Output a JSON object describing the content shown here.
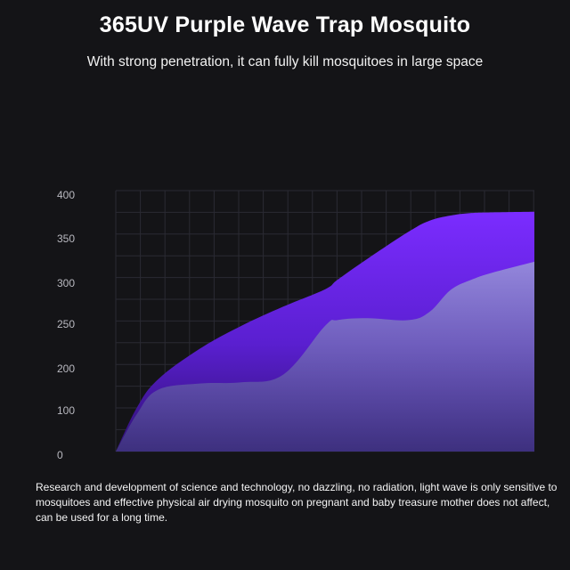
{
  "header": {
    "title": "365UV Purple Wave Trap Mosquito",
    "subtitle": "With strong penetration, it can fully kill mosquitoes in large space"
  },
  "caption": "Research and development of science and technology, no dazzling, no radiation, light wave is only sensitive to mosquitoes and effective physical air drying mosquito on pregnant and baby treasure mother does not affect, can be used for a long time.",
  "colors": {
    "background": "#141417",
    "grid": "#2a2a33",
    "purple_top": "#7b2cff",
    "purple_bottom": "#3a1388",
    "lavender": "#8f8fc8"
  },
  "chart_data": {
    "type": "area",
    "title": "",
    "xlabel": "",
    "ylabel": "",
    "ylim": [
      0,
      400
    ],
    "y_ticks": [
      "0",
      "100",
      "200",
      "250",
      "300",
      "350",
      "400"
    ],
    "grid": true,
    "legend": "none",
    "x": [
      0,
      0.05,
      0.1,
      0.2,
      0.3,
      0.4,
      0.5,
      0.53,
      0.6,
      0.7,
      0.75,
      0.8,
      0.85,
      0.9,
      1.0
    ],
    "series": [
      {
        "values": [
          0,
          68,
          112,
          160,
          196,
          226,
          253,
          268,
          300,
          343,
          360,
          368,
          372,
          373,
          374
        ],
        "color": "#7b2cff"
      },
      {
        "values": [
          0,
          58,
          96,
          106,
          108,
          120,
          196,
          205,
          208,
          205,
          218,
          252,
          268,
          279,
          296
        ],
        "color": "#8f8fc8"
      }
    ]
  }
}
